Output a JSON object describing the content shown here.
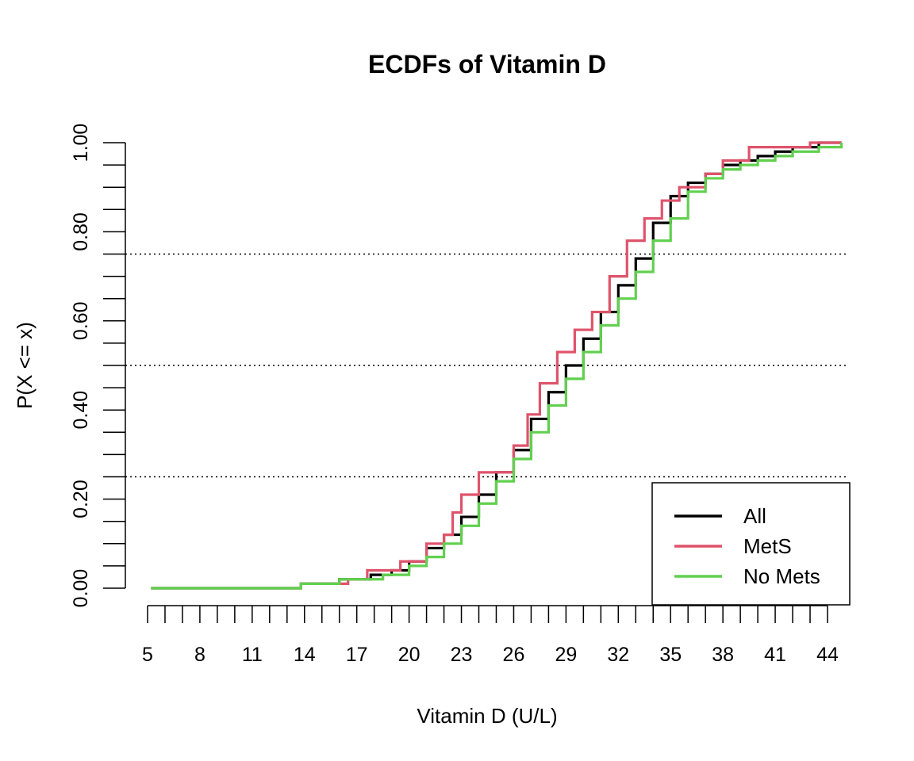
{
  "chart_data": {
    "type": "line",
    "step": true,
    "title": "ECDFs of Vitamin D",
    "xlabel": "Vitamin D (U/L)",
    "ylabel": "P(X <= x)",
    "xlim": [
      5,
      45
    ],
    "ylim": [
      0,
      1
    ],
    "x_ticks": [
      5,
      8,
      11,
      14,
      17,
      20,
      23,
      26,
      29,
      32,
      35,
      38,
      41,
      44
    ],
    "y_ticks": [
      0.0,
      0.2,
      0.4,
      0.6,
      0.8,
      1.0
    ],
    "y_tick_labels": [
      "0.00",
      "0.20",
      "0.40",
      "0.60",
      "0.80",
      "1.00"
    ],
    "reference_lines": [
      0.25,
      0.5,
      0.75
    ],
    "legend": {
      "position": "bottom-right"
    },
    "series": [
      {
        "name": "All",
        "color": "#000000",
        "x": [
          5.2,
          13.8,
          16.0,
          17.8,
          19.0,
          20.0,
          21.0,
          22.0,
          23.0,
          24.0,
          25.0,
          26.0,
          27.0,
          28.0,
          29.0,
          30.0,
          31.0,
          32.0,
          33.0,
          34.0,
          35.0,
          36.0,
          37.0,
          38.0,
          39.0,
          40.0,
          41.0,
          42.0,
          43.5,
          44.8
        ],
        "y": [
          0.0,
          0.01,
          0.02,
          0.03,
          0.04,
          0.06,
          0.09,
          0.12,
          0.16,
          0.21,
          0.26,
          0.31,
          0.38,
          0.44,
          0.5,
          0.56,
          0.62,
          0.68,
          0.74,
          0.82,
          0.88,
          0.91,
          0.93,
          0.95,
          0.96,
          0.97,
          0.98,
          0.99,
          1.0,
          1.0
        ]
      },
      {
        "name": "MetS",
        "color": "#DF536B",
        "x": [
          5.2,
          13.8,
          16.5,
          17.6,
          19.5,
          21.0,
          22.0,
          22.5,
          23.0,
          24.0,
          25.0,
          26.0,
          26.8,
          27.5,
          28.5,
          29.5,
          30.5,
          31.5,
          32.5,
          33.5,
          34.5,
          35.5,
          37.0,
          38.0,
          39.5,
          42.0,
          43.0,
          44.8
        ],
        "y": [
          0.0,
          0.01,
          0.02,
          0.04,
          0.06,
          0.1,
          0.12,
          0.17,
          0.21,
          0.26,
          0.26,
          0.32,
          0.39,
          0.46,
          0.53,
          0.58,
          0.62,
          0.7,
          0.78,
          0.83,
          0.87,
          0.9,
          0.93,
          0.96,
          0.99,
          0.99,
          1.0,
          1.0
        ]
      },
      {
        "name": "No Mets",
        "color": "#61D04F",
        "x": [
          5.2,
          13.8,
          16.0,
          18.5,
          20.0,
          21.0,
          22.0,
          23.0,
          24.0,
          25.0,
          26.0,
          27.0,
          28.0,
          29.0,
          30.0,
          31.0,
          32.0,
          33.0,
          34.0,
          35.0,
          36.0,
          37.0,
          38.0,
          39.0,
          40.0,
          41.0,
          42.0,
          43.5,
          44.8
        ],
        "y": [
          0.0,
          0.01,
          0.02,
          0.03,
          0.05,
          0.07,
          0.1,
          0.14,
          0.19,
          0.24,
          0.29,
          0.35,
          0.41,
          0.47,
          0.53,
          0.59,
          0.65,
          0.71,
          0.78,
          0.83,
          0.89,
          0.92,
          0.94,
          0.95,
          0.96,
          0.97,
          0.98,
          0.99,
          1.0
        ]
      }
    ]
  }
}
